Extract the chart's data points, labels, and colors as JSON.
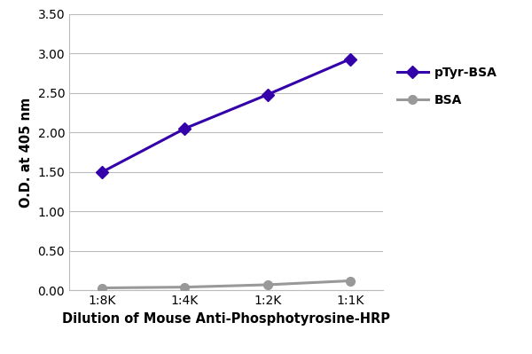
{
  "x_labels": [
    "1:8K",
    "1:4K",
    "1:2K",
    "1:1K"
  ],
  "x_values": [
    0,
    1,
    2,
    3
  ],
  "pTyr_BSA_values": [
    1.5,
    2.05,
    2.48,
    2.93
  ],
  "BSA_values": [
    0.03,
    0.04,
    0.07,
    0.12
  ],
  "pTyr_BSA_color": "#3300aa",
  "BSA_color": "#999999",
  "pTyr_BSA_label": "pTyr-BSA",
  "BSA_label": "BSA",
  "xlabel": "Dilution of Mouse Anti-Phosphotyrosine-HRP",
  "ylabel": "O.D. at 405 nm",
  "ylim": [
    0.0,
    3.5
  ],
  "yticks": [
    0.0,
    0.5,
    1.0,
    1.5,
    2.0,
    2.5,
    3.0,
    3.5
  ],
  "ytick_labels": [
    "0.00",
    "0.50",
    "1.00",
    "1.50",
    "2.00",
    "2.50",
    "3.00",
    "3.50"
  ],
  "line_width": 2.2,
  "pTyr_marker": "D",
  "BSA_marker": "o",
  "pTyr_marker_size": 7,
  "BSA_marker_size": 7,
  "background_color": "#ffffff",
  "grid_color": "#bbbbbb",
  "xlabel_fontsize": 10.5,
  "ylabel_fontsize": 10.5,
  "tick_fontsize": 10,
  "legend_fontsize": 10
}
